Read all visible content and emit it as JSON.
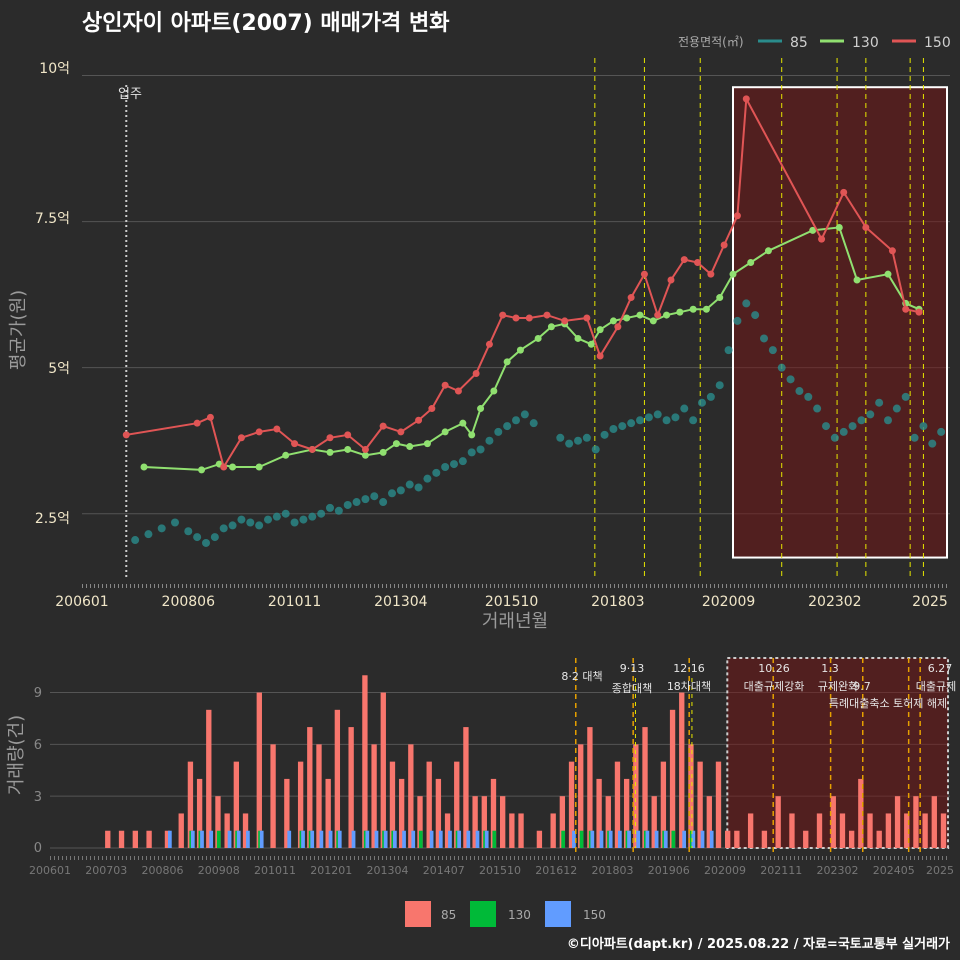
{
  "title": "상인자이 아파트(2007) 매매가격 변화",
  "credit": "©디아파트(dapt.kr) / 2025.08.22 / 자료=국토교통부 실거래가",
  "colors": {
    "background": "#2b2b2b",
    "s85": "#2a8c8c",
    "s130": "#90e070",
    "s150": "#e05555",
    "bar85": "#f8766d",
    "bar130": "#00ba38",
    "bar150": "#619cff",
    "policy": "#e6e600",
    "policy_low": "#e6a000"
  },
  "legend": {
    "title": "전용면적(㎡)",
    "items": [
      "85",
      "130",
      "150"
    ]
  },
  "bar_legend": {
    "items": [
      "85",
      "130",
      "150"
    ]
  },
  "top_chart": {
    "x_ticks": [
      "200601",
      "200806",
      "201011",
      "201304",
      "201510",
      "201803",
      "202009",
      "202302",
      "2025"
    ],
    "y_ticks": [
      "2.5억",
      "5억",
      "7.5억",
      "10억"
    ],
    "xlabel": "거래년월",
    "ylabel": "평균가(원)",
    "move_in_label": "입주"
  },
  "bottom_chart": {
    "x_ticks": [
      "200601",
      "200703",
      "200806",
      "200908",
      "201011",
      "201201",
      "201304",
      "201407",
      "201510",
      "201612",
      "201803",
      "201906",
      "202009",
      "202111",
      "202302",
      "202405",
      "2025"
    ],
    "y_ticks": [
      "0",
      "3",
      "6",
      "9"
    ],
    "ylabel": "거래량(건)"
  },
  "annotations": [
    {
      "date": "8·2",
      "text": "대책"
    },
    {
      "date": "9·13",
      "text": "종합대책"
    },
    {
      "date": "12·16",
      "text": "18차대책"
    },
    {
      "date": "10.26",
      "text": "대출규제강화"
    },
    {
      "date": "1.3",
      "text": "규제완화"
    },
    {
      "date": "9.7",
      "text": "특례대출축소 토허제 해제"
    },
    {
      "date": "6.27",
      "text": "대출규제"
    }
  ],
  "chart_data": [
    {
      "type": "line",
      "title": "상인자이 아파트(2007) 매매가격 변화",
      "xlabel": "거래년월",
      "ylabel": "평균가(원)",
      "x_range": [
        2006.0,
        2025.6
      ],
      "ylim": [
        1.4,
        10.3
      ],
      "y_unit": "억",
      "move_in": 2007.0,
      "policy_lines": [
        2017.58,
        2018.7,
        2019.96,
        2021.8,
        2023.05,
        2023.7,
        2024.7,
        2025.0
      ],
      "highlight_range": [
        2020.7,
        2025.6
      ],
      "series": [
        {
          "name": "85",
          "style": "points",
          "x": [
            2007.2,
            2007.5,
            2007.8,
            2008.1,
            2008.4,
            2008.6,
            2008.8,
            2009.0,
            2009.2,
            2009.4,
            2009.6,
            2009.8,
            2010.0,
            2010.2,
            2010.4,
            2010.6,
            2010.8,
            2011.0,
            2011.2,
            2011.4,
            2011.6,
            2011.8,
            2012.0,
            2012.2,
            2012.4,
            2012.6,
            2012.8,
            2013.0,
            2013.2,
            2013.4,
            2013.6,
            2013.8,
            2014.0,
            2014.2,
            2014.4,
            2014.6,
            2014.8,
            2015.0,
            2015.2,
            2015.4,
            2015.6,
            2015.8,
            2016.0,
            2016.2,
            2016.8,
            2017.0,
            2017.2,
            2017.4,
            2017.6,
            2017.8,
            2018.0,
            2018.2,
            2018.4,
            2018.6,
            2018.8,
            2019.0,
            2019.2,
            2019.4,
            2019.6,
            2019.8,
            2020.0,
            2020.2,
            2020.4,
            2020.6,
            2020.8,
            2021.0,
            2021.2,
            2021.4,
            2021.6,
            2021.8,
            2022.0,
            2022.2,
            2022.4,
            2022.6,
            2022.8,
            2023.0,
            2023.2,
            2023.4,
            2023.6,
            2023.8,
            2024.0,
            2024.2,
            2024.4,
            2024.6,
            2024.8,
            2025.0,
            2025.2,
            2025.4
          ],
          "values": [
            2.05,
            2.15,
            2.25,
            2.35,
            2.2,
            2.1,
            2.0,
            2.1,
            2.25,
            2.3,
            2.4,
            2.35,
            2.3,
            2.4,
            2.45,
            2.5,
            2.35,
            2.4,
            2.45,
            2.5,
            2.6,
            2.55,
            2.65,
            2.7,
            2.75,
            2.8,
            2.7,
            2.85,
            2.9,
            3.0,
            2.95,
            3.1,
            3.2,
            3.3,
            3.35,
            3.4,
            3.55,
            3.6,
            3.75,
            3.9,
            4.0,
            4.1,
            4.2,
            4.05,
            3.8,
            3.7,
            3.75,
            3.8,
            3.6,
            3.85,
            3.95,
            4.0,
            4.05,
            4.1,
            4.15,
            4.2,
            4.1,
            4.15,
            4.3,
            4.1,
            4.4,
            4.5,
            4.7,
            5.3,
            5.8,
            6.1,
            5.9,
            5.5,
            5.3,
            5.0,
            4.8,
            4.6,
            4.5,
            4.3,
            4.0,
            3.8,
            3.9,
            4.0,
            4.1,
            4.2,
            4.4,
            4.1,
            4.3,
            4.5,
            3.8,
            4.0,
            3.7,
            3.9
          ]
        },
        {
          "name": "130",
          "style": "line",
          "x": [
            2007.4,
            2008.7,
            2009.1,
            2009.4,
            2010.0,
            2010.6,
            2011.2,
            2011.6,
            2012.0,
            2012.4,
            2012.8,
            2013.1,
            2013.4,
            2013.8,
            2014.2,
            2014.6,
            2014.8,
            2015.0,
            2015.3,
            2015.6,
            2015.9,
            2016.3,
            2016.6,
            2016.9,
            2017.2,
            2017.5,
            2017.7,
            2018.0,
            2018.3,
            2018.6,
            2018.9,
            2019.2,
            2019.5,
            2019.8,
            2020.1,
            2020.4,
            2020.7,
            2021.1,
            2021.5,
            2022.5,
            2023.1,
            2023.5,
            2024.2,
            2024.6,
            2024.9
          ],
          "values": [
            3.3,
            3.25,
            3.35,
            3.3,
            3.3,
            3.5,
            3.6,
            3.55,
            3.6,
            3.5,
            3.55,
            3.7,
            3.65,
            3.7,
            3.9,
            4.05,
            3.85,
            4.3,
            4.6,
            5.1,
            5.3,
            5.5,
            5.7,
            5.75,
            5.5,
            5.4,
            5.65,
            5.8,
            5.85,
            5.9,
            5.8,
            5.9,
            5.95,
            6.0,
            6.0,
            6.2,
            6.6,
            6.8,
            7.0,
            7.35,
            7.4,
            6.5,
            6.6,
            6.1,
            6.0
          ]
        },
        {
          "name": "150",
          "style": "line",
          "x": [
            2007.0,
            2008.6,
            2008.9,
            2009.2,
            2009.6,
            2010.0,
            2010.4,
            2010.8,
            2011.2,
            2011.6,
            2012.0,
            2012.4,
            2012.8,
            2013.2,
            2013.6,
            2013.9,
            2014.2,
            2014.5,
            2014.9,
            2015.2,
            2015.5,
            2015.8,
            2016.1,
            2016.5,
            2016.9,
            2017.4,
            2017.7,
            2018.1,
            2018.4,
            2018.7,
            2019.0,
            2019.3,
            2019.6,
            2019.9,
            2020.2,
            2020.5,
            2020.8,
            2021.0,
            2022.7,
            2023.2,
            2023.7,
            2024.3,
            2024.6,
            2024.9
          ],
          "values": [
            3.85,
            4.05,
            4.15,
            3.3,
            3.8,
            3.9,
            3.95,
            3.7,
            3.6,
            3.8,
            3.85,
            3.6,
            4.0,
            3.9,
            4.1,
            4.3,
            4.7,
            4.6,
            4.9,
            5.4,
            5.9,
            5.85,
            5.85,
            5.9,
            5.8,
            5.85,
            5.2,
            5.7,
            6.2,
            6.6,
            5.9,
            6.5,
            6.85,
            6.8,
            6.6,
            7.1,
            7.6,
            9.6,
            7.2,
            8.0,
            7.4,
            7.0,
            6.0,
            5.95
          ]
        }
      ]
    },
    {
      "type": "bar",
      "ylabel": "거래량(건)",
      "ylim": [
        0,
        11
      ],
      "x_range": [
        2006.0,
        2025.6
      ],
      "bar_step": 0.083,
      "x": [
        2007.2,
        2007.5,
        2007.8,
        2008.1,
        2008.5,
        2008.8,
        2009.0,
        2009.2,
        2009.4,
        2009.6,
        2009.8,
        2010.0,
        2010.2,
        2010.5,
        2010.8,
        2011.1,
        2011.4,
        2011.6,
        2011.8,
        2012.0,
        2012.2,
        2012.5,
        2012.8,
        2013.0,
        2013.2,
        2013.4,
        2013.6,
        2013.8,
        2014.0,
        2014.2,
        2014.4,
        2014.6,
        2014.8,
        2015.0,
        2015.2,
        2015.4,
        2015.6,
        2015.8,
        2016.0,
        2016.2,
        2016.6,
        2016.9,
        2017.1,
        2017.3,
        2017.5,
        2017.7,
        2017.9,
        2018.1,
        2018.3,
        2018.5,
        2018.7,
        2018.9,
        2019.1,
        2019.3,
        2019.5,
        2019.7,
        2019.9,
        2020.1,
        2020.3,
        2020.5,
        2020.7,
        2020.9,
        2021.2,
        2021.5,
        2021.8,
        2022.1,
        2022.4,
        2022.7,
        2023.0,
        2023.2,
        2023.4,
        2023.6,
        2023.8,
        2024.0,
        2024.2,
        2024.4,
        2024.6,
        2024.8,
        2025.0,
        2025.2,
        2025.4
      ],
      "series": [
        {
          "name": "85",
          "values": [
            1,
            1,
            1,
            1,
            1,
            2,
            5,
            4,
            8,
            3,
            2,
            5,
            2,
            9,
            6,
            4,
            5,
            7,
            6,
            4,
            8,
            7,
            10,
            6,
            9,
            5,
            4,
            6,
            3,
            5,
            4,
            2,
            5,
            7,
            3,
            3,
            4,
            3,
            2,
            2,
            1,
            2,
            3,
            5,
            6,
            7,
            4,
            3,
            5,
            4,
            6,
            7,
            3,
            5,
            8,
            9,
            6,
            5,
            3,
            5,
            1,
            1,
            2,
            1,
            3,
            2,
            1,
            2,
            3,
            2,
            1,
            4,
            2,
            1,
            2,
            3,
            2,
            3,
            2,
            3,
            2
          ]
        },
        {
          "name": "130",
          "values": [
            0,
            0,
            0,
            0,
            0,
            0,
            1,
            1,
            0,
            1,
            0,
            1,
            0,
            1,
            0,
            0,
            1,
            1,
            0,
            0,
            1,
            0,
            1,
            0,
            1,
            1,
            0,
            0,
            1,
            0,
            0,
            0,
            1,
            0,
            0,
            1,
            1,
            0,
            0,
            0,
            0,
            0,
            1,
            0,
            1,
            1,
            0,
            1,
            0,
            1,
            0,
            1,
            0,
            1,
            1,
            0,
            1,
            0,
            0,
            0,
            0,
            0,
            0,
            0,
            0,
            0,
            0,
            0,
            0,
            0,
            0,
            0,
            0,
            0,
            0,
            0,
            0,
            0,
            0,
            0,
            0
          ]
        },
        {
          "name": "150",
          "values": [
            0,
            0,
            0,
            0,
            1,
            0,
            1,
            1,
            1,
            0,
            1,
            1,
            1,
            1,
            0,
            1,
            1,
            1,
            1,
            1,
            1,
            1,
            1,
            1,
            1,
            1,
            1,
            1,
            0,
            1,
            1,
            1,
            1,
            1,
            1,
            1,
            0,
            0,
            0,
            0,
            0,
            0,
            0,
            1,
            0,
            1,
            1,
            1,
            1,
            1,
            1,
            1,
            1,
            1,
            0,
            1,
            1,
            1,
            1,
            0,
            0,
            0,
            0,
            0,
            0,
            0,
            0,
            0,
            0,
            0,
            0,
            0,
            0,
            0,
            0,
            0,
            0,
            0,
            0,
            0,
            0
          ]
        }
      ]
    }
  ]
}
